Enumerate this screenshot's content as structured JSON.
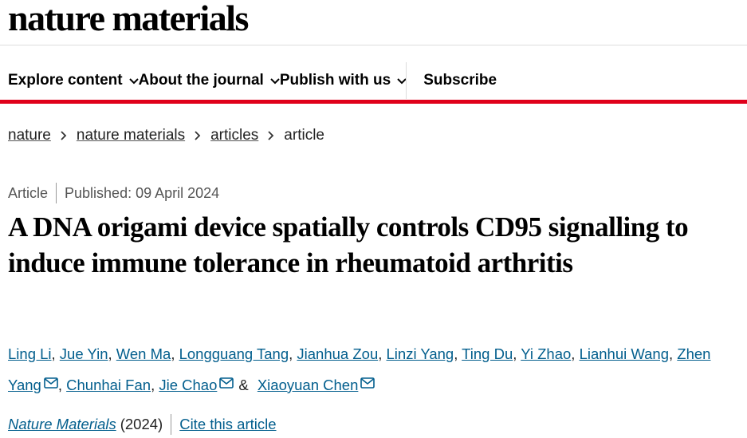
{
  "header": {
    "logo": "nature materials",
    "nav": [
      "Explore content",
      "About the journal",
      "Publish with us"
    ],
    "subscribe": "Subscribe"
  },
  "breadcrumb": [
    "nature",
    "nature materials",
    "articles",
    "article"
  ],
  "article": {
    "type": "Article",
    "published": "Published: 09 April 2024",
    "title": "A DNA origami device spatially controls CD95 signalling to induce immune tolerance in rheumatoid arthritis",
    "authors": [
      {
        "name": "Ling Li",
        "sep": ","
      },
      {
        "name": "Jue Yin",
        "sep": ","
      },
      {
        "name": "Wen Ma",
        "sep": ","
      },
      {
        "name": "Longguang Tang",
        "sep": ","
      },
      {
        "name": "Jianhua Zou",
        "sep": ","
      },
      {
        "name": "Linzi Yang",
        "sep": ","
      },
      {
        "name": "Ting Du",
        "sep": ","
      },
      {
        "name": "Yi Zhao",
        "sep": ","
      },
      {
        "name": "Lianhui Wang",
        "sep": ","
      },
      {
        "name": "Zhen Yang",
        "sep": ",",
        "email": true
      },
      {
        "name": "Chunhai Fan",
        "sep": ","
      },
      {
        "name": "Jie Chao",
        "sep": "&",
        "email": true
      },
      {
        "name": "Xiaoyuan Chen",
        "email": true
      }
    ],
    "journal": "Nature Materials",
    "year": "(2024)",
    "cite": "Cite this article"
  }
}
